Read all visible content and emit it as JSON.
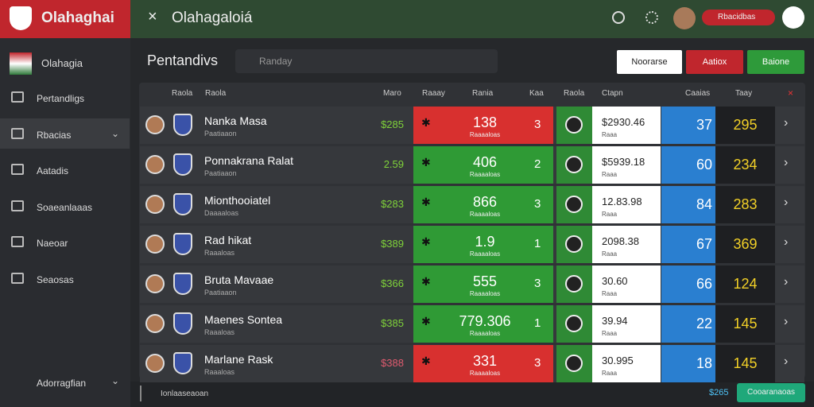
{
  "header": {
    "brand": "Olahaghai",
    "title": "Olahagaloiá",
    "badge": "Rbacidbas"
  },
  "sidebar": {
    "top": "Olahagia",
    "items": [
      "Pertandligs",
      "Rbacias",
      "Aatadis",
      "Soaeanlaaas",
      "Naeoar",
      "Seaosas"
    ],
    "selected": 1,
    "bottom": "Adorragfian"
  },
  "main": {
    "title": "Pentandivs",
    "search": "Randay",
    "buttons": [
      "Noorarse",
      "Aatiox",
      "Baione"
    ]
  },
  "table": {
    "columns": [
      "Raola",
      "Raola",
      "Maro",
      "Raaay",
      "Rania",
      "Kaa",
      "Raola",
      "Ctapn",
      "Caaias",
      "Taay"
    ],
    "rows": [
      {
        "name": "Nanka Masa",
        "sub": "Paatiaaon",
        "amount": "$285",
        "value": "138",
        "value_sub": "Raaaaloas",
        "count": "3",
        "price": "$2930.46",
        "price_sub": "Raaa",
        "score": "37",
        "points": "295",
        "highlight": "red"
      },
      {
        "name": "Ponnakrana Ralat",
        "sub": "Paatiaaon",
        "amount": "2.59",
        "value": "406",
        "value_sub": "Raaaaloas",
        "count": "2",
        "price": "$5939.18",
        "price_sub": "Raaa",
        "score": "60",
        "points": "234",
        "highlight": "green"
      },
      {
        "name": "Mionthooiatel",
        "sub": "Daaaaloas",
        "amount": "$283",
        "value": "866",
        "value_sub": "Raaaaloas",
        "count": "3",
        "price": "12.83.98",
        "price_sub": "Raaa",
        "score": "84",
        "points": "283",
        "highlight": "green"
      },
      {
        "name": "Rad hikat",
        "sub": "Raaaloas",
        "amount": "$389",
        "value": "1.9",
        "value_sub": "Raaaaloas",
        "count": "1",
        "price": "2098.38",
        "price_sub": "Raaa",
        "score": "67",
        "points": "369",
        "highlight": "green"
      },
      {
        "name": "Bruta Mavaae",
        "sub": "Paatiaaon",
        "amount": "$366",
        "value": "555",
        "value_sub": "Raaaaloas",
        "count": "3",
        "price": "30.60",
        "price_sub": "Raaa",
        "score": "66",
        "points": "124",
        "highlight": "green"
      },
      {
        "name": "Maenes Sontea",
        "sub": "Raaaloas",
        "amount": "$385",
        "value": "779.306",
        "value_sub": "Raaaaloas",
        "count": "1",
        "price": "39.94",
        "price_sub": "Raaa",
        "score": "22",
        "points": "145",
        "highlight": "green"
      },
      {
        "name": "Marlane Rask",
        "sub": "Raaaloas",
        "amount": "$388",
        "value": "331",
        "value_sub": "Raaaaloas",
        "count": "3",
        "price": "30.995",
        "price_sub": "Raaa",
        "score": "18",
        "points": "145",
        "highlight": "red"
      }
    ]
  },
  "footer": {
    "label": "Ionlaaseaoan",
    "amount": "$265",
    "button": "Cooaranaoas"
  }
}
